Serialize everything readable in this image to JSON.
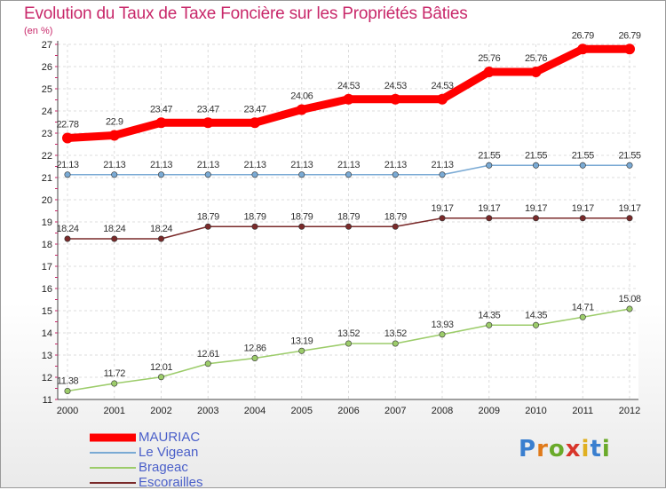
{
  "header": {
    "title": "Evolution du Taux de Taxe Foncière sur les Propriétés Bâties",
    "unit": "(en %)"
  },
  "logo": {
    "text": "Proxiti",
    "letters": [
      "P",
      "r",
      "o",
      "x",
      "i",
      "t",
      "i"
    ],
    "letter_colors": [
      "#3a7fcf",
      "#e07a1a",
      "#6aaa2a",
      "#d8352a",
      "#e0b020",
      "#3a7fcf",
      "#6aaa2a"
    ]
  },
  "chart_data": {
    "type": "line",
    "title": "Evolution du Taux de Taxe Foncière sur les Propriétés Bâties",
    "ylabel": "(en %)",
    "xlabel": "",
    "ylim": [
      11,
      27
    ],
    "yticks": [
      "11",
      "12",
      "13",
      "14",
      "15",
      "16",
      "17",
      "18",
      "19",
      "20",
      "21",
      "22",
      "23",
      "24",
      "25",
      "26",
      "27"
    ],
    "categories": [
      "2000",
      "2001",
      "2002",
      "2003",
      "2004",
      "2005",
      "2006",
      "2007",
      "2008",
      "2009",
      "2010",
      "2011",
      "2012"
    ],
    "grid": true,
    "legend_position": "bottom-left",
    "series": [
      {
        "name": "MAURIAC",
        "color": "#ff0000",
        "values": [
          22.78,
          22.9,
          23.47,
          23.47,
          23.47,
          24.06,
          24.53,
          24.53,
          24.53,
          25.76,
          25.76,
          26.79,
          26.79
        ],
        "labels": [
          "22.78",
          "22.9",
          "23.47",
          "23.47",
          "23.47",
          "24.06",
          "24.53",
          "24.53",
          "24.53",
          "25.76",
          "25.76",
          "26.79",
          "26.79"
        ]
      },
      {
        "name": "Le Vigean",
        "color": "#7aaad4",
        "values": [
          21.13,
          21.13,
          21.13,
          21.13,
          21.13,
          21.13,
          21.13,
          21.13,
          21.13,
          21.55,
          21.55,
          21.55,
          21.55
        ],
        "labels": [
          "21.13",
          "21.13",
          "21.13",
          "21.13",
          "21.13",
          "21.13",
          "21.13",
          "21.13",
          "21.13",
          "21.55",
          "21.55",
          "21.55",
          "21.55"
        ]
      },
      {
        "name": "Brageac",
        "color": "#9ccc6a",
        "values": [
          11.38,
          11.72,
          12.01,
          12.61,
          12.86,
          13.19,
          13.52,
          13.52,
          13.93,
          14.35,
          14.35,
          14.71,
          15.08
        ],
        "labels": [
          "11.38",
          "11.72",
          "12.01",
          "12.61",
          "12.86",
          "13.19",
          "13.52",
          "13.52",
          "13.93",
          "14.35",
          "14.35",
          "14.71",
          "15.08"
        ]
      },
      {
        "name": "Escorailles",
        "color": "#7a2a2a",
        "values": [
          18.24,
          18.24,
          18.24,
          18.79,
          18.79,
          18.79,
          18.79,
          18.79,
          19.17,
          19.17,
          19.17,
          19.17,
          19.17
        ],
        "labels": [
          "18.24",
          "18.24",
          "18.24",
          "18.79",
          "18.79",
          "18.79",
          "18.79",
          "18.79",
          "19.17",
          "19.17",
          "19.17",
          "19.17",
          "19.17"
        ]
      }
    ]
  }
}
